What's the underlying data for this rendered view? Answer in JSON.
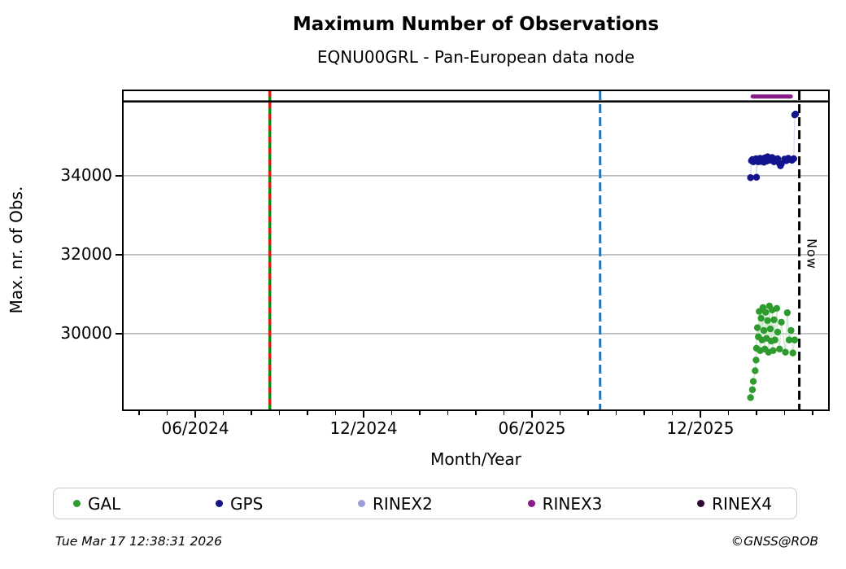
{
  "footer": {
    "timestamp": "Tue Mar 17 12:38:31 2026",
    "credit": "©GNSS@ROB"
  },
  "chart_data": {
    "type": "scatter",
    "title": "Maximum Number of Observations",
    "subtitle": "EQNU00GRL - Pan-European data node",
    "xlabel": "Month/Year",
    "ylabel": "Max. nr. of Obs.",
    "x_axis": {
      "range_decimal_year": [
        2024.204,
        2026.296
      ],
      "major_ticks": [
        {
          "label": "06/2024",
          "year": 2024,
          "month": 6
        },
        {
          "label": "12/2024",
          "year": 2024,
          "month": 12
        },
        {
          "label": "06/2025",
          "year": 2025,
          "month": 6
        },
        {
          "label": "12/2025",
          "year": 2025,
          "month": 12
        }
      ],
      "minor_tick_interval_months": 1
    },
    "y_axis": {
      "range": [
        28080,
        36140
      ],
      "ticks": [
        34000,
        32000,
        30000
      ],
      "grid": true,
      "grid_color": "#b3b3b3"
    },
    "header_band": {
      "separator_value": 35880,
      "bars": [
        {
          "series": "RINEX3",
          "start": "2026-01-25",
          "end": "2026-03-10",
          "color": "#8b1a8b"
        }
      ]
    },
    "markers": [
      {
        "name": "campaign-start-line",
        "date": "2024-08-21",
        "style": "solid+dash",
        "color_solid": "#0f8a0f",
        "color_dash": "#d62020",
        "label": ""
      },
      {
        "name": "event-line",
        "date": "2025-08-14",
        "style": "dashed",
        "color": "#1f77b4",
        "label": ""
      },
      {
        "name": "now-line",
        "date": "2026-03-17",
        "style": "dashed",
        "color": "#000000",
        "label": "Now"
      }
    ],
    "legend": {
      "position": "bottom",
      "items": [
        "GAL",
        "GPS",
        "RINEX2",
        "RINEX3",
        "RINEX4"
      ]
    },
    "series": [
      {
        "name": "GAL",
        "color": "#2e9b2e",
        "line_color": "#cfe9cf",
        "points": [
          [
            "2026-01-25",
            28380
          ],
          [
            "2026-01-27",
            28580
          ],
          [
            "2026-01-28",
            28790
          ],
          [
            "2026-01-30",
            29060
          ],
          [
            "2026-01-31",
            29330
          ],
          [
            "2026-02-01",
            29630
          ],
          [
            "2026-02-02",
            30150
          ],
          [
            "2026-02-03",
            29920
          ],
          [
            "2026-02-04",
            30560
          ],
          [
            "2026-02-05",
            29570
          ],
          [
            "2026-02-06",
            30390
          ],
          [
            "2026-02-07",
            29840
          ],
          [
            "2026-02-08",
            30660
          ],
          [
            "2026-02-09",
            30080
          ],
          [
            "2026-02-10",
            29610
          ],
          [
            "2026-02-11",
            30540
          ],
          [
            "2026-02-12",
            29880
          ],
          [
            "2026-02-13",
            30330
          ],
          [
            "2026-02-14",
            29530
          ],
          [
            "2026-02-15",
            30700
          ],
          [
            "2026-02-16",
            30120
          ],
          [
            "2026-02-17",
            29810
          ],
          [
            "2026-02-18",
            30600
          ],
          [
            "2026-02-19",
            29570
          ],
          [
            "2026-02-20",
            30350
          ],
          [
            "2026-02-21",
            29840
          ],
          [
            "2026-02-23",
            30640
          ],
          [
            "2026-02-24",
            30040
          ],
          [
            "2026-02-26",
            29610
          ],
          [
            "2026-02-28",
            30290
          ],
          [
            "2026-03-02",
            29530
          ],
          [
            "2026-03-04",
            30530
          ],
          [
            "2026-03-06",
            29840
          ],
          [
            "2026-03-08",
            30080
          ],
          [
            "2026-03-10",
            29510
          ],
          [
            "2026-03-12",
            29840
          ]
        ]
      },
      {
        "name": "GPS",
        "color": "#13138f",
        "line_color": "#d7dcf1",
        "points": [
          [
            "2026-01-25",
            33950
          ],
          [
            "2026-01-26",
            34380
          ],
          [
            "2026-01-27",
            34410
          ],
          [
            "2026-01-28",
            34350
          ],
          [
            "2026-01-29",
            34400
          ],
          [
            "2026-01-30",
            34370
          ],
          [
            "2026-01-31",
            34430
          ],
          [
            "2026-02-01",
            33960
          ],
          [
            "2026-02-02",
            34400
          ],
          [
            "2026-02-03",
            34350
          ],
          [
            "2026-02-04",
            34390
          ],
          [
            "2026-02-05",
            34440
          ],
          [
            "2026-02-06",
            34360
          ],
          [
            "2026-02-07",
            34420
          ],
          [
            "2026-02-08",
            34380
          ],
          [
            "2026-02-09",
            34340
          ],
          [
            "2026-02-10",
            34450
          ],
          [
            "2026-02-11",
            34400
          ],
          [
            "2026-02-12",
            34370
          ],
          [
            "2026-02-13",
            34480
          ],
          [
            "2026-02-14",
            34430
          ],
          [
            "2026-02-15",
            34390
          ],
          [
            "2026-02-16",
            34440
          ],
          [
            "2026-02-17",
            34410
          ],
          [
            "2026-02-18",
            34460
          ],
          [
            "2026-02-19",
            34380
          ],
          [
            "2026-02-20",
            34350
          ],
          [
            "2026-02-21",
            34420
          ],
          [
            "2026-02-22",
            34390
          ],
          [
            "2026-02-24",
            34430
          ],
          [
            "2026-02-26",
            34310
          ],
          [
            "2026-02-27",
            34250
          ],
          [
            "2026-02-28",
            34300
          ],
          [
            "2026-03-01",
            34420
          ],
          [
            "2026-03-03",
            34380
          ],
          [
            "2026-03-05",
            34440
          ],
          [
            "2026-03-07",
            34410
          ],
          [
            "2026-03-09",
            34390
          ],
          [
            "2026-03-11",
            34430
          ],
          [
            "2026-03-12",
            35540
          ],
          [
            "2026-03-13",
            35560
          ]
        ]
      },
      {
        "name": "RINEX2",
        "color": "#9d9dd6",
        "line_color": "#e2e2f2",
        "points": []
      },
      {
        "name": "RINEX3",
        "color": "#8b1a8b",
        "line_color": "#e8d2e8",
        "points": []
      },
      {
        "name": "RINEX4",
        "color": "#2d0a33",
        "line_color": "#d8d0da",
        "points": []
      }
    ]
  }
}
